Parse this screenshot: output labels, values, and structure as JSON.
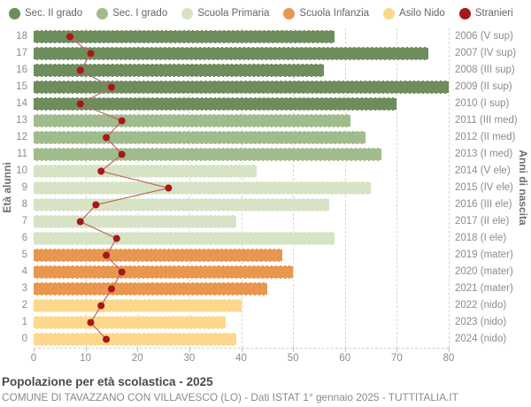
{
  "legend": {
    "items": [
      {
        "label": "Sec. II grado",
        "color": "#6d8d5c"
      },
      {
        "label": "Sec. I grado",
        "color": "#a0bc8c"
      },
      {
        "label": "Scuola Primaria",
        "color": "#d7e3c5"
      },
      {
        "label": "Scuola Infanzia",
        "color": "#e9974e"
      },
      {
        "label": "Asilo Nido",
        "color": "#fdd88c"
      },
      {
        "label": "Stranieri",
        "color": "#a81717"
      }
    ]
  },
  "axes": {
    "left_title": "Età alunni",
    "right_title": "Anni di nascita",
    "x_ticks": [
      0,
      10,
      20,
      30,
      40,
      50,
      60,
      70,
      80
    ],
    "x_max": 80,
    "grid": "vertical-dashed"
  },
  "chart_data": {
    "type": "bar",
    "orientation": "horizontal",
    "x_range": [
      0,
      80
    ],
    "title": "Popolazione per età scolastica - 2025",
    "group_colors": {
      "sec2": "#6d8d5c",
      "sec1": "#a0bc8c",
      "primaria": "#d7e3c5",
      "infanzia": "#e9974e",
      "nido": "#fdd88c"
    },
    "line_series": {
      "name": "Stranieri",
      "dot_color": "#a81717",
      "line_color": "#b96a60"
    },
    "rows": [
      {
        "age": 18,
        "birth_label": "2006 (V sup)",
        "group": "sec2",
        "students": 58,
        "stranieri": 7
      },
      {
        "age": 17,
        "birth_label": "2007 (IV sup)",
        "group": "sec2",
        "students": 76,
        "stranieri": 11
      },
      {
        "age": 16,
        "birth_label": "2008 (III sup)",
        "group": "sec2",
        "students": 56,
        "stranieri": 9
      },
      {
        "age": 15,
        "birth_label": "2009 (II sup)",
        "group": "sec2",
        "students": 80,
        "stranieri": 15
      },
      {
        "age": 14,
        "birth_label": "2010 (I sup)",
        "group": "sec2",
        "students": 70,
        "stranieri": 9
      },
      {
        "age": 13,
        "birth_label": "2011 (III med)",
        "group": "sec1",
        "students": 61,
        "stranieri": 17
      },
      {
        "age": 12,
        "birth_label": "2012 (II med)",
        "group": "sec1",
        "students": 64,
        "stranieri": 14
      },
      {
        "age": 11,
        "birth_label": "2013 (I med)",
        "group": "sec1",
        "students": 67,
        "stranieri": 17
      },
      {
        "age": 10,
        "birth_label": "2014 (V ele)",
        "group": "primaria",
        "students": 43,
        "stranieri": 13
      },
      {
        "age": 9,
        "birth_label": "2015 (IV ele)",
        "group": "primaria",
        "students": 65,
        "stranieri": 26
      },
      {
        "age": 8,
        "birth_label": "2016 (III ele)",
        "group": "primaria",
        "students": 57,
        "stranieri": 12
      },
      {
        "age": 7,
        "birth_label": "2017 (II ele)",
        "group": "primaria",
        "students": 39,
        "stranieri": 9
      },
      {
        "age": 6,
        "birth_label": "2018 (I ele)",
        "group": "primaria",
        "students": 58,
        "stranieri": 16
      },
      {
        "age": 5,
        "birth_label": "2019 (mater)",
        "group": "infanzia",
        "students": 48,
        "stranieri": 14
      },
      {
        "age": 4,
        "birth_label": "2020 (mater)",
        "group": "infanzia",
        "students": 50,
        "stranieri": 17
      },
      {
        "age": 3,
        "birth_label": "2021 (mater)",
        "group": "infanzia",
        "students": 45,
        "stranieri": 15
      },
      {
        "age": 2,
        "birth_label": "2022 (nido)",
        "group": "nido",
        "students": 40,
        "stranieri": 13
      },
      {
        "age": 1,
        "birth_label": "2023 (nido)",
        "group": "nido",
        "students": 37,
        "stranieri": 11
      },
      {
        "age": 0,
        "birth_label": "2024 (nido)",
        "group": "nido",
        "students": 39,
        "stranieri": 14
      }
    ]
  },
  "footer": {
    "title": "Popolazione per età scolastica - 2025",
    "subtitle": "COMUNE DI TAVAZZANO CON VILLAVESCO (LO) - Dati ISTAT 1° gennaio 2025 - TUTTITALIA.IT"
  }
}
